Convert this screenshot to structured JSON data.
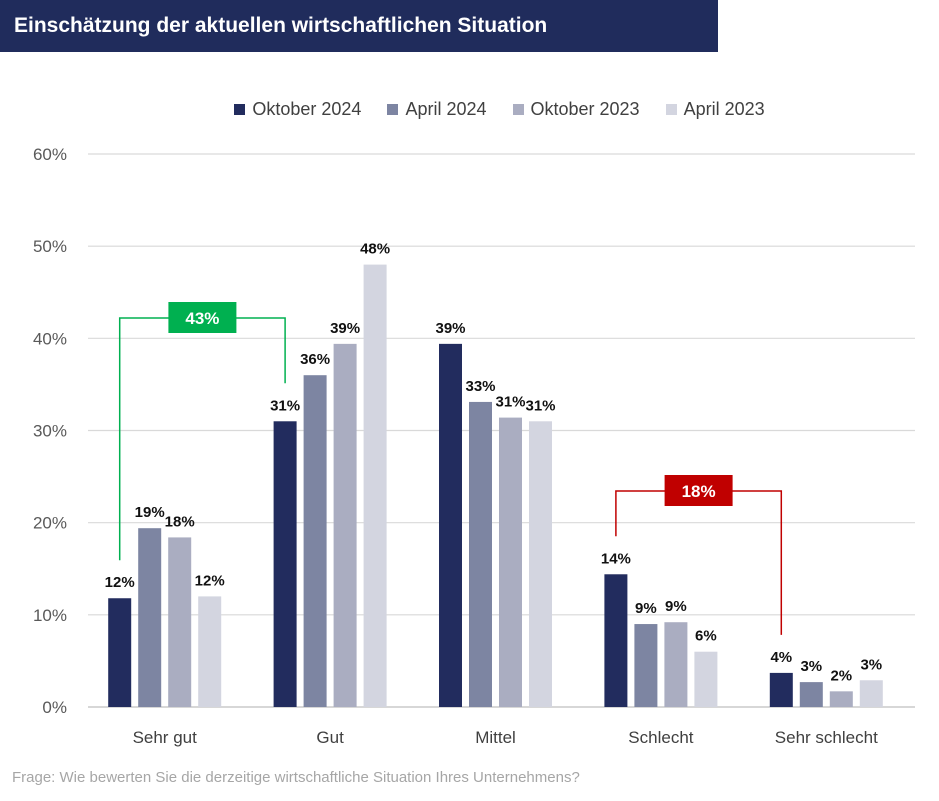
{
  "header": {
    "title": "Einschätzung der aktuellen wirtschaftlichen Situation"
  },
  "footnote": "Frage: Wie bewerten Sie die derzeitige wirtschaftliche Situation Ihres Unternehmens?",
  "chart_data": {
    "type": "bar",
    "title": "Einschätzung der aktuellen wirtschaftlichen Situation",
    "categories": [
      "Sehr gut",
      "Gut",
      "Mittel",
      "Schlecht",
      "Sehr schlecht"
    ],
    "series": [
      {
        "name": "Oktober 2024",
        "color": "#222c5e",
        "values": [
          11.8,
          31.0,
          39.4,
          14.4,
          3.7
        ],
        "labels": [
          "12%",
          "31%",
          "39%",
          "14%",
          "4%"
        ]
      },
      {
        "name": "April 2024",
        "color": "#7d85a2",
        "values": [
          19.4,
          36.0,
          33.1,
          9.0,
          2.7
        ],
        "labels": [
          "19%",
          "36%",
          "33%",
          "9%",
          "3%"
        ]
      },
      {
        "name": "Oktober 2023",
        "color": "#aaadc1",
        "values": [
          18.4,
          39.4,
          31.4,
          9.2,
          1.7
        ],
        "labels": [
          "18%",
          "39%",
          "31%",
          "9%",
          "2%"
        ]
      },
      {
        "name": "April 2023",
        "color": "#d3d5e0",
        "values": [
          12.0,
          48.0,
          31.0,
          6.0,
          2.9
        ],
        "labels": [
          "12%",
          "48%",
          "31%",
          "6%",
          "3%"
        ]
      }
    ],
    "y_axis": {
      "min": 0,
      "max": 60,
      "step": 10,
      "tick_labels": [
        "0%",
        "10%",
        "20%",
        "30%",
        "40%",
        "50%",
        "60%"
      ]
    },
    "gridlines": true,
    "legend_position": "top-center",
    "annotations": [
      {
        "label": "43%",
        "color": "#00b050",
        "from_category": 0,
        "to_category": 1,
        "meaning": "Sehr gut + Gut (Oktober 2024)"
      },
      {
        "label": "18%",
        "color": "#c00000",
        "from_category": 3,
        "to_category": 4,
        "meaning": "Schlecht + Sehr schlecht (Oktober 2024)"
      }
    ]
  }
}
